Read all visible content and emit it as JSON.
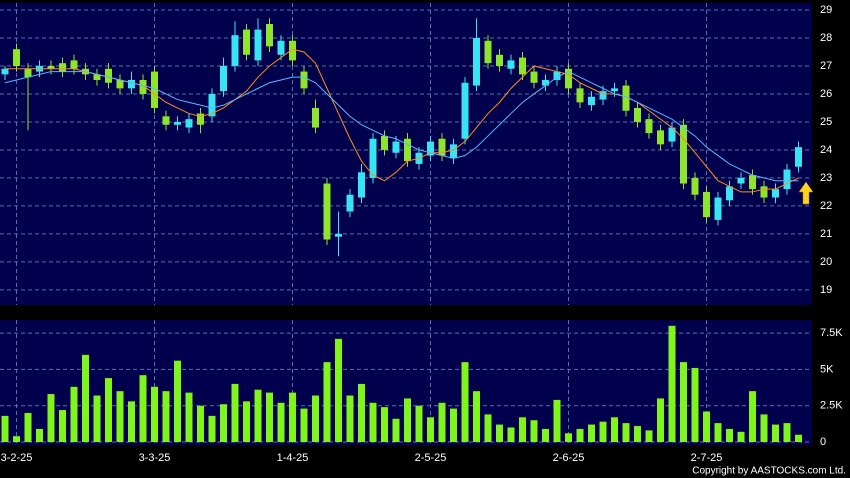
{
  "chart_data": [
    {
      "type": "candlestick",
      "open": [
        26.7,
        27.6,
        26.9,
        26.8,
        27.0,
        27.1,
        27.2,
        26.9,
        26.7,
        26.9,
        26.5,
        26.2,
        26.5,
        26.8,
        25.2,
        24.9,
        24.8,
        25.3,
        25.2,
        26.1,
        27.0,
        28.3,
        27.2,
        28.5,
        27.4,
        27.9,
        26.8,
        25.5,
        22.8,
        20.9,
        21.8,
        22.3,
        23.0,
        24.5,
        23.9,
        24.4,
        23.5,
        23.8,
        24.4,
        23.7,
        24.4,
        26.3,
        27.9,
        27.4,
        26.9,
        27.3,
        26.8,
        26.3,
        26.5,
        26.9,
        26.2,
        25.6,
        25.8,
        26.1,
        26.3,
        25.5,
        25.1,
        24.7,
        24.3,
        24.9,
        23.0,
        22.5,
        21.5,
        22.2,
        22.8,
        23.1,
        22.7,
        22.3,
        22.6,
        23.4
      ],
      "high": [
        27.0,
        27.8,
        27.1,
        27.2,
        27.2,
        27.3,
        27.4,
        27.1,
        26.9,
        27.1,
        26.7,
        26.8,
        26.7,
        27.0,
        25.4,
        25.2,
        25.3,
        25.5,
        26.2,
        27.3,
        28.6,
        28.5,
        28.7,
        28.7,
        28.1,
        28.1,
        27.0,
        25.8,
        23.0,
        21.8,
        22.6,
        23.5,
        24.6,
        24.7,
        24.5,
        24.6,
        24.1,
        24.5,
        24.6,
        24.4,
        26.6,
        28.7,
        28.1,
        27.6,
        27.4,
        27.5,
        27.0,
        26.7,
        27.0,
        27.1,
        26.4,
        26.1,
        26.3,
        26.4,
        26.5,
        25.7,
        25.3,
        24.9,
        25.0,
        25.1,
        23.2,
        22.7,
        22.5,
        22.9,
        23.2,
        23.3,
        22.9,
        22.8,
        23.5,
        24.3
      ],
      "low": [
        26.5,
        26.8,
        24.7,
        26.6,
        26.7,
        26.6,
        26.7,
        26.5,
        26.3,
        26.2,
        26.0,
        26.0,
        25.8,
        25.3,
        24.7,
        24.7,
        24.6,
        24.6,
        25.0,
        25.9,
        26.8,
        27.2,
        27.0,
        27.5,
        27.2,
        27.0,
        26.0,
        24.6,
        20.6,
        20.2,
        21.6,
        22.1,
        22.8,
        23.8,
        23.7,
        23.4,
        23.3,
        23.6,
        23.6,
        23.5,
        24.2,
        26.1,
        26.9,
        26.8,
        26.7,
        26.5,
        26.2,
        26.1,
        26.3,
        26.0,
        25.5,
        25.4,
        25.6,
        25.9,
        25.2,
        24.8,
        24.4,
        24.0,
        24.1,
        22.6,
        22.2,
        21.4,
        21.3,
        22.0,
        22.6,
        22.4,
        22.1,
        22.1,
        22.4,
        23.2
      ],
      "close": [
        26.9,
        27.0,
        26.6,
        27.0,
        26.9,
        26.8,
        26.9,
        26.7,
        26.5,
        26.4,
        26.2,
        26.5,
        26.0,
        25.5,
        24.9,
        25.0,
        25.1,
        24.9,
        26.0,
        27.0,
        28.1,
        27.4,
        28.3,
        27.7,
        27.9,
        27.2,
        26.2,
        24.8,
        20.8,
        21.0,
        22.4,
        23.2,
        24.4,
        24.0,
        24.3,
        23.6,
        23.9,
        24.3,
        23.8,
        24.2,
        26.4,
        28.0,
        27.1,
        27.0,
        27.2,
        26.7,
        26.4,
        26.5,
        26.8,
        26.2,
        25.7,
        25.9,
        26.1,
        26.2,
        25.4,
        25.0,
        24.6,
        24.2,
        24.8,
        22.8,
        22.4,
        21.6,
        22.3,
        22.7,
        23.0,
        22.6,
        22.3,
        22.6,
        23.3,
        24.1
      ],
      "up_color": "#38e3f2",
      "down_color": "#8ee52c",
      "series": [
        {
          "color": "#ff8c1a",
          "values": [
            26.9,
            26.9,
            26.9,
            26.9,
            26.9,
            26.9,
            26.9,
            26.8,
            26.7,
            26.6,
            26.5,
            26.4,
            26.3,
            26.0,
            25.7,
            25.5,
            25.3,
            25.2,
            25.3,
            25.5,
            25.8,
            26.1,
            26.6,
            27.0,
            27.3,
            27.6,
            27.5,
            27.1,
            26.2,
            25.3,
            24.4,
            23.6,
            23.1,
            22.9,
            23.2,
            23.6,
            23.7,
            23.9,
            23.9,
            24.0,
            24.3,
            24.8,
            25.3,
            25.7,
            26.2,
            26.6,
            27.0,
            26.9,
            26.8,
            26.7,
            26.4,
            26.2,
            26.0,
            26.0,
            25.9,
            25.7,
            25.4,
            25.1,
            24.8,
            24.4,
            23.9,
            23.4,
            22.9,
            22.7,
            22.5,
            22.5,
            22.6,
            22.6,
            22.8,
            23.0
          ]
        },
        {
          "color": "#5ab8ff",
          "values": [
            26.4,
            26.5,
            26.6,
            26.7,
            26.8,
            26.8,
            26.8,
            26.8,
            26.7,
            26.6,
            26.5,
            26.4,
            26.3,
            26.2,
            26.0,
            25.8,
            25.7,
            25.6,
            25.5,
            25.6,
            25.8,
            26.0,
            26.2,
            26.4,
            26.5,
            26.6,
            26.6,
            26.4,
            26.0,
            25.6,
            25.2,
            24.9,
            24.7,
            24.5,
            24.4,
            24.2,
            24.0,
            23.9,
            23.8,
            23.7,
            23.8,
            24.1,
            24.5,
            24.9,
            25.3,
            25.7,
            26.0,
            26.3,
            26.6,
            26.8,
            26.6,
            26.4,
            26.2,
            26.0,
            25.9,
            25.7,
            25.5,
            25.3,
            25.1,
            24.8,
            24.5,
            24.1,
            23.8,
            23.5,
            23.3,
            23.1,
            23.0,
            22.9,
            22.9,
            22.9
          ]
        }
      ],
      "ylim": [
        18.46,
        29.25
      ],
      "yticks": [
        19,
        20,
        21,
        22,
        23,
        24,
        25,
        26,
        27,
        28,
        29
      ],
      "grid": true
    },
    {
      "type": "bar",
      "categories": [
        null,
        "3-2-25",
        null,
        null,
        null,
        null,
        null,
        null,
        null,
        null,
        null,
        null,
        null,
        "3-3-25",
        null,
        null,
        null,
        null,
        null,
        null,
        null,
        null,
        null,
        null,
        null,
        "1-4-25",
        null,
        null,
        null,
        null,
        null,
        null,
        null,
        null,
        null,
        null,
        null,
        "2-5-25",
        null,
        null,
        null,
        null,
        null,
        null,
        null,
        null,
        null,
        null,
        null,
        "2-6-25",
        null,
        null,
        null,
        null,
        null,
        null,
        null,
        null,
        null,
        null,
        null,
        "2-7-25",
        null,
        null,
        null,
        null,
        null,
        null,
        null,
        null
      ],
      "values": [
        1800,
        400,
        2000,
        900,
        3300,
        2200,
        3800,
        6000,
        3200,
        4400,
        3500,
        2800,
        4600,
        3800,
        3500,
        5600,
        3400,
        2500,
        1800,
        2600,
        4000,
        2800,
        3600,
        3400,
        2700,
        3400,
        2300,
        3200,
        5500,
        7100,
        3200,
        4000,
        2700,
        2400,
        1600,
        3000,
        2500,
        1700,
        2700,
        2300,
        5500,
        3500,
        1900,
        1200,
        1000,
        1700,
        1500,
        900,
        2900,
        600,
        900,
        1200,
        1400,
        1700,
        1300,
        1100,
        800,
        3000,
        8000,
        5500,
        5100,
        2100,
        1300,
        900,
        700,
        3500,
        1900,
        1200,
        1300,
        500
      ],
      "color": "#7ff51c",
      "ylim": [
        0,
        8400
      ],
      "yticks": [
        0,
        {
          "value": 2500,
          "label": "2.5K"
        },
        {
          "value": 5000,
          "label": "5K"
        },
        {
          "value": 7500,
          "label": "7.5K"
        }
      ],
      "grid": true
    }
  ],
  "copyright": "Copyright by AASTOCKS.com Ltd."
}
